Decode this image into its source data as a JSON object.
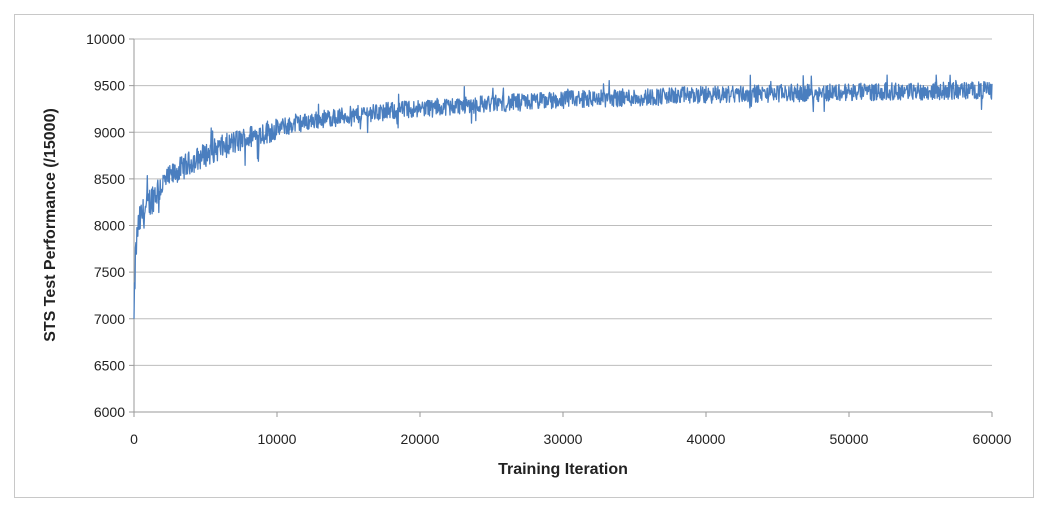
{
  "chart_data": {
    "type": "line",
    "title": "",
    "xlabel": "Training Iteration",
    "ylabel": "STS Test Performance (/15000)",
    "xlim": [
      0,
      60000
    ],
    "ylim": [
      6000,
      10000
    ],
    "x_ticks": [
      "0",
      "10000",
      "20000",
      "30000",
      "40000",
      "50000",
      "60000"
    ],
    "y_ticks": [
      "6000",
      "6500",
      "7000",
      "7500",
      "8000",
      "8500",
      "9000",
      "9500",
      "10000"
    ],
    "grid": "horizontal",
    "legend": "none",
    "colors": {
      "line": "#4a7ebf",
      "grid": "#bdbdbd",
      "axis": "#9a9a9a"
    },
    "series": [
      {
        "x": [
          0,
          100,
          250,
          500,
          750,
          1000,
          1500,
          2000,
          3000,
          4000,
          5000,
          6000,
          7000,
          8000,
          9000,
          10000,
          11000,
          12000,
          13000,
          14000,
          15000,
          16000,
          17000,
          18000,
          19000,
          20000,
          21000,
          22000,
          23000,
          24000,
          25000,
          26000,
          27000,
          28000,
          29000,
          30000,
          31000,
          32000,
          33000,
          34000,
          35000,
          36000,
          37000,
          38000,
          39000,
          40000,
          41000,
          42000,
          43000,
          44000,
          45000,
          46000,
          47000,
          48000,
          49000,
          50000,
          51000,
          52000,
          53000,
          54000,
          55000,
          56000,
          57000,
          58000,
          59000,
          60000
        ],
        "values": [
          7000,
          7650,
          7950,
          8100,
          8150,
          8230,
          8350,
          8450,
          8580,
          8680,
          8760,
          8830,
          8890,
          8940,
          8990,
          9040,
          9080,
          9110,
          9140,
          9160,
          9180,
          9200,
          9215,
          9230,
          9245,
          9260,
          9270,
          9280,
          9290,
          9300,
          9310,
          9315,
          9320,
          9330,
          9340,
          9350,
          9355,
          9360,
          9365,
          9370,
          9375,
          9380,
          9385,
          9390,
          9395,
          9400,
          9405,
          9410,
          9412,
          9415,
          9418,
          9420,
          9422,
          9425,
          9428,
          9430,
          9432,
          9435,
          9437,
          9440,
          9440,
          9442,
          9444,
          9446,
          9448,
          9450
        ]
      }
    ]
  }
}
